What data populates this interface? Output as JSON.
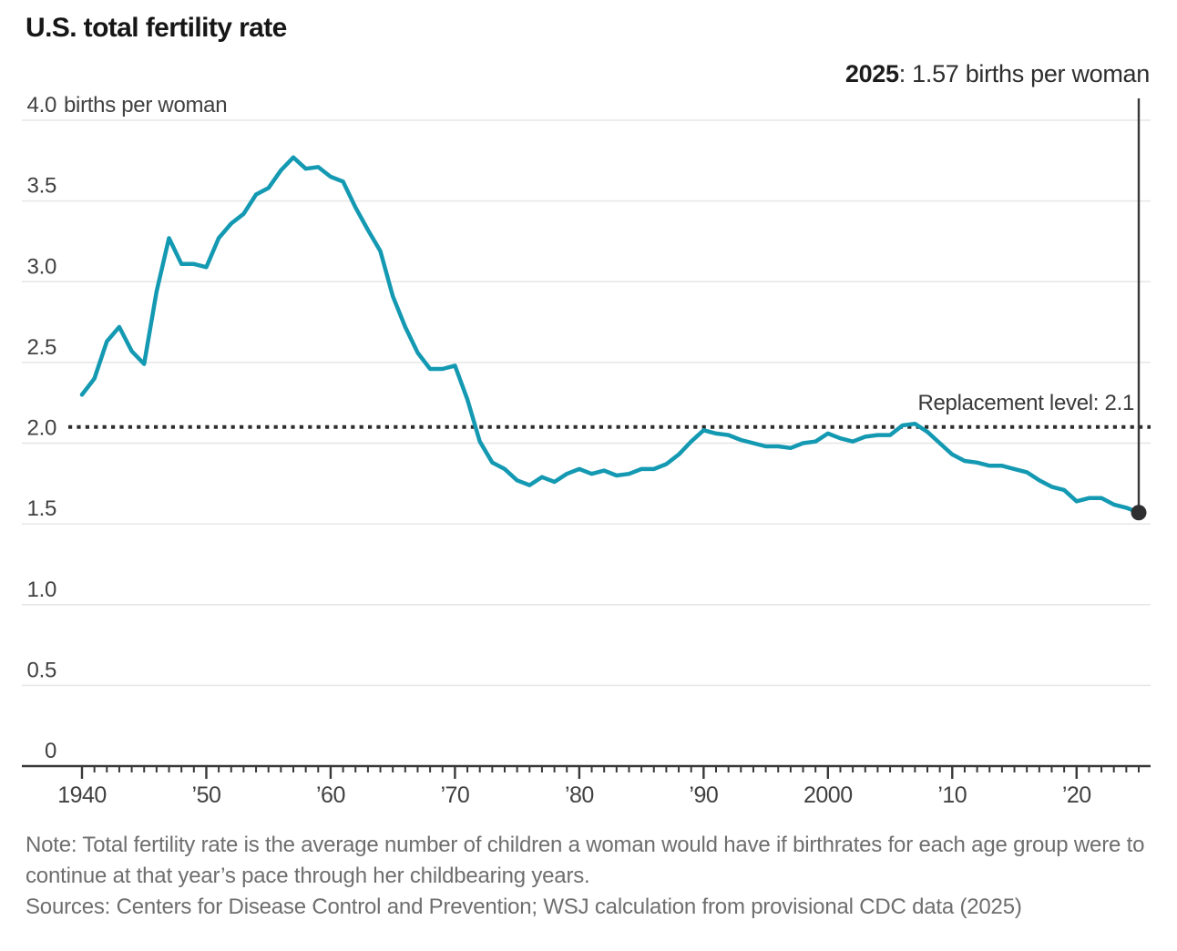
{
  "title": "U.S. total fertility rate",
  "annotation": {
    "year": "2025",
    "text": ": 1.57 births per woman"
  },
  "footer": {
    "note": "Note: Total fertility rate is the average number of children a woman would have if birthrates for each age group were to continue at that year’s pace through her childbearing years.",
    "sources": "Sources: Centers for Disease Control and Prevention; WSJ calculation from provisional CDC data (2025)"
  },
  "chart_data": {
    "type": "line",
    "title": "U.S. total fertility rate",
    "ylabel": "births per woman",
    "xlabel": "",
    "ylim": [
      0,
      4
    ],
    "grid": true,
    "legend": "none",
    "x_start": 1940,
    "x_end": 2025,
    "x": [
      1940,
      1941,
      1942,
      1943,
      1944,
      1945,
      1946,
      1947,
      1948,
      1949,
      1950,
      1951,
      1952,
      1953,
      1954,
      1955,
      1956,
      1957,
      1958,
      1959,
      1960,
      1961,
      1962,
      1963,
      1964,
      1965,
      1966,
      1967,
      1968,
      1969,
      1970,
      1971,
      1972,
      1973,
      1974,
      1975,
      1976,
      1977,
      1978,
      1979,
      1980,
      1981,
      1982,
      1983,
      1984,
      1985,
      1986,
      1987,
      1988,
      1989,
      1990,
      1991,
      1992,
      1993,
      1994,
      1995,
      1996,
      1997,
      1998,
      1999,
      2000,
      2001,
      2002,
      2003,
      2004,
      2005,
      2006,
      2007,
      2008,
      2009,
      2010,
      2011,
      2012,
      2013,
      2014,
      2015,
      2016,
      2017,
      2018,
      2019,
      2020,
      2021,
      2022,
      2023,
      2024,
      2025
    ],
    "series": [
      {
        "name": "U.S. total fertility rate (births per woman)",
        "values": [
          2.3,
          2.4,
          2.63,
          2.72,
          2.57,
          2.49,
          2.94,
          3.27,
          3.11,
          3.11,
          3.09,
          3.27,
          3.36,
          3.42,
          3.54,
          3.58,
          3.69,
          3.77,
          3.7,
          3.71,
          3.65,
          3.62,
          3.46,
          3.32,
          3.19,
          2.91,
          2.72,
          2.56,
          2.46,
          2.46,
          2.48,
          2.27,
          2.01,
          1.88,
          1.84,
          1.77,
          1.74,
          1.79,
          1.76,
          1.81,
          1.84,
          1.81,
          1.83,
          1.8,
          1.81,
          1.84,
          1.84,
          1.87,
          1.93,
          2.01,
          2.08,
          2.06,
          2.05,
          2.02,
          2.0,
          1.98,
          1.98,
          1.97,
          2.0,
          2.01,
          2.06,
          2.03,
          2.01,
          2.04,
          2.05,
          2.05,
          2.11,
          2.12,
          2.07,
          2.0,
          1.93,
          1.89,
          1.88,
          1.86,
          1.86,
          1.84,
          1.82,
          1.77,
          1.73,
          1.71,
          1.64,
          1.66,
          1.66,
          1.62,
          1.6,
          1.57
        ]
      }
    ],
    "yticks": [
      {
        "v": 0,
        "label": "0"
      },
      {
        "v": 0.5,
        "label": "0.5"
      },
      {
        "v": 1,
        "label": "1.0"
      },
      {
        "v": 1.5,
        "label": "1.5"
      },
      {
        "v": 2,
        "label": "2.0"
      },
      {
        "v": 2.5,
        "label": "2.5"
      },
      {
        "v": 3,
        "label": "3.0"
      },
      {
        "v": 3.5,
        "label": "3.5"
      },
      {
        "v": 4,
        "label": "4.0",
        "suffix": "births per woman"
      }
    ],
    "xticks": [
      {
        "year": 1940,
        "label": "1940"
      },
      {
        "year": 1950,
        "label": "’50"
      },
      {
        "year": 1960,
        "label": "’60"
      },
      {
        "year": 1970,
        "label": "’70"
      },
      {
        "year": 1980,
        "label": "’80"
      },
      {
        "year": 1990,
        "label": "’90"
      },
      {
        "year": 2000,
        "label": "2000"
      },
      {
        "year": 2010,
        "label": "’10"
      },
      {
        "year": 2020,
        "label": "’20"
      }
    ],
    "reference_line": {
      "value": 2.1,
      "label": "Replacement level: 2.1"
    },
    "end_callout": {
      "year": 2025,
      "value": 1.57
    },
    "colors": {
      "line": "#1499b2",
      "grid": "#e6e6e6",
      "axis": "#38383a",
      "reference": "#2d2d2d",
      "marker": "#2f2f31",
      "axis_text": "#414141"
    }
  }
}
